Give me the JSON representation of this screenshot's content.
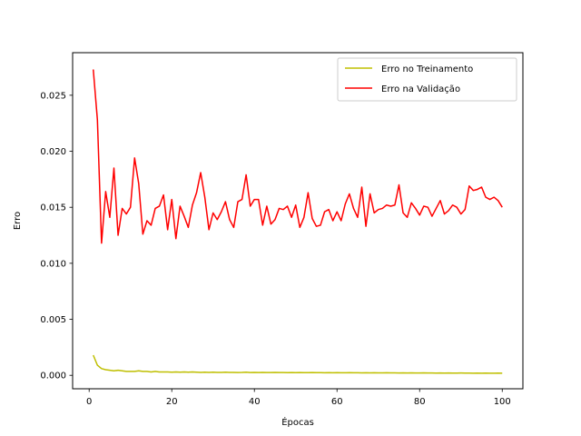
{
  "chart_data": {
    "type": "line",
    "title": "",
    "xlabel": "Épocas",
    "ylabel": "Erro",
    "xlim": [
      -4,
      105
    ],
    "ylim": [
      -0.0012,
      0.0288
    ],
    "x_ticks": [
      0,
      20,
      40,
      60,
      80,
      100
    ],
    "x_tick_labels": [
      "0",
      "20",
      "40",
      "60",
      "80",
      "100"
    ],
    "y_ticks": [
      0.0,
      0.005,
      0.01,
      0.015,
      0.02,
      0.025
    ],
    "y_tick_labels": [
      "0.000",
      "0.005",
      "0.010",
      "0.015",
      "0.020",
      "0.025"
    ],
    "grid": false,
    "legend_position": "top-right",
    "series": [
      {
        "name": "Erro no Treinamento",
        "color": "#bfbf00",
        "x": [
          1,
          2,
          3,
          4,
          5,
          6,
          7,
          8,
          9,
          10,
          11,
          12,
          13,
          14,
          15,
          16,
          17,
          18,
          19,
          20,
          21,
          22,
          23,
          24,
          25,
          26,
          27,
          28,
          29,
          30,
          31,
          32,
          33,
          34,
          35,
          36,
          37,
          38,
          39,
          40,
          41,
          42,
          43,
          44,
          45,
          46,
          47,
          48,
          49,
          50,
          51,
          52,
          53,
          54,
          55,
          56,
          57,
          58,
          59,
          60,
          61,
          62,
          63,
          64,
          65,
          66,
          67,
          68,
          69,
          70,
          71,
          72,
          73,
          74,
          75,
          76,
          77,
          78,
          79,
          80,
          81,
          82,
          83,
          84,
          85,
          86,
          87,
          88,
          89,
          90,
          91,
          92,
          93,
          94,
          95,
          96,
          97,
          98,
          99,
          100
        ],
        "y": [
          0.0018,
          0.0009,
          0.0006,
          0.0005,
          0.00045,
          0.0004,
          0.00045,
          0.0004,
          0.00035,
          0.00035,
          0.00035,
          0.0004,
          0.00035,
          0.00035,
          0.0003,
          0.00035,
          0.0003,
          0.0003,
          0.0003,
          0.00028,
          0.0003,
          0.00028,
          0.0003,
          0.00028,
          0.0003,
          0.00028,
          0.00026,
          0.00028,
          0.00026,
          0.00028,
          0.00026,
          0.00026,
          0.00028,
          0.00026,
          0.00026,
          0.00025,
          0.00026,
          0.00028,
          0.00025,
          0.00026,
          0.00025,
          0.00026,
          0.00025,
          0.00025,
          0.00026,
          0.00025,
          0.00025,
          0.00024,
          0.00025,
          0.00024,
          0.00025,
          0.00024,
          0.00024,
          0.00025,
          0.00024,
          0.00024,
          0.00023,
          0.00024,
          0.00023,
          0.00024,
          0.00023,
          0.00023,
          0.00024,
          0.00023,
          0.00023,
          0.00022,
          0.00023,
          0.00022,
          0.00023,
          0.00022,
          0.00022,
          0.00023,
          0.00022,
          0.00022,
          0.00021,
          0.00022,
          0.00021,
          0.00022,
          0.00021,
          0.00021,
          0.00022,
          0.00021,
          0.00021,
          0.0002,
          0.00021,
          0.0002,
          0.00021,
          0.0002,
          0.0002,
          0.00021,
          0.0002,
          0.0002,
          0.00019,
          0.0002,
          0.00019,
          0.0002,
          0.00019,
          0.00019,
          0.0002,
          0.00019
        ]
      },
      {
        "name": "Erro na Validação",
        "color": "#ff0000",
        "x": [
          1,
          2,
          3,
          4,
          5,
          6,
          7,
          8,
          9,
          10,
          11,
          12,
          13,
          14,
          15,
          16,
          17,
          18,
          19,
          20,
          21,
          22,
          23,
          24,
          25,
          26,
          27,
          28,
          29,
          30,
          31,
          32,
          33,
          34,
          35,
          36,
          37,
          38,
          39,
          40,
          41,
          42,
          43,
          44,
          45,
          46,
          47,
          48,
          49,
          50,
          51,
          52,
          53,
          54,
          55,
          56,
          57,
          58,
          59,
          60,
          61,
          62,
          63,
          64,
          65,
          66,
          67,
          68,
          69,
          70,
          71,
          72,
          73,
          74,
          75,
          76,
          77,
          78,
          79,
          80,
          81,
          82,
          83,
          84,
          85,
          86,
          87,
          88,
          89,
          90,
          91,
          92,
          93,
          94,
          95,
          96,
          97,
          98,
          99,
          100
        ],
        "y": [
          0.0273,
          0.0228,
          0.0118,
          0.0164,
          0.0141,
          0.0185,
          0.0125,
          0.0149,
          0.0144,
          0.015,
          0.0194,
          0.0171,
          0.0126,
          0.0138,
          0.0134,
          0.0149,
          0.0151,
          0.0161,
          0.013,
          0.0157,
          0.0122,
          0.0151,
          0.0142,
          0.0132,
          0.0152,
          0.0163,
          0.0181,
          0.0159,
          0.013,
          0.0145,
          0.0139,
          0.0146,
          0.0155,
          0.0139,
          0.0132,
          0.0155,
          0.0157,
          0.0179,
          0.0151,
          0.0157,
          0.0157,
          0.0134,
          0.0151,
          0.0135,
          0.0139,
          0.0149,
          0.0148,
          0.0151,
          0.0141,
          0.0152,
          0.0132,
          0.0141,
          0.0163,
          0.014,
          0.0133,
          0.0134,
          0.0146,
          0.0148,
          0.0138,
          0.0146,
          0.0138,
          0.0153,
          0.0162,
          0.0149,
          0.0141,
          0.0168,
          0.0133,
          0.0162,
          0.0145,
          0.0148,
          0.0149,
          0.0152,
          0.0151,
          0.0152,
          0.017,
          0.0145,
          0.0141,
          0.0154,
          0.0149,
          0.0143,
          0.0151,
          0.015,
          0.0142,
          0.0149,
          0.0156,
          0.0144,
          0.0147,
          0.0152,
          0.015,
          0.0144,
          0.0148,
          0.0169,
          0.0165,
          0.0166,
          0.0168,
          0.0159,
          0.0157,
          0.0159,
          0.0156,
          0.015
        ]
      }
    ]
  }
}
